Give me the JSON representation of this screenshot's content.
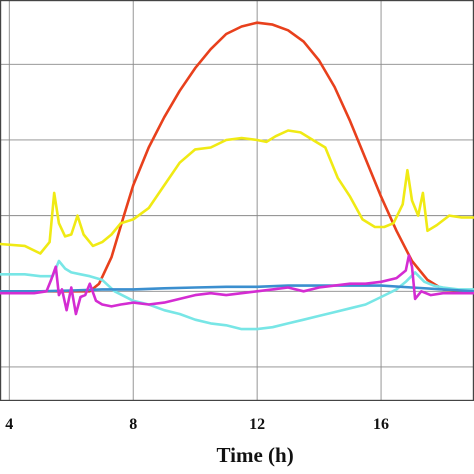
{
  "chart_data": {
    "type": "line",
    "title": "",
    "xlabel": "Time (h)",
    "ylabel": "",
    "x_ticks": [
      4,
      8,
      12,
      16
    ],
    "xlim": [
      3.7,
      19.0
    ],
    "ylim": [
      -2.9,
      7.7
    ],
    "grid": true,
    "legend": "none",
    "series": [
      {
        "color": "#e8401c",
        "points": [
          [
            3.7,
            0.0
          ],
          [
            5,
            0.0
          ],
          [
            6,
            0.0
          ],
          [
            6.6,
            0.0
          ],
          [
            6.9,
            0.2
          ],
          [
            7.3,
            0.9
          ],
          [
            7.7,
            2.0
          ],
          [
            8,
            2.8
          ],
          [
            8.5,
            3.8
          ],
          [
            9,
            4.6
          ],
          [
            9.5,
            5.3
          ],
          [
            10,
            5.9
          ],
          [
            10.5,
            6.4
          ],
          [
            11,
            6.8
          ],
          [
            11.5,
            7.0
          ],
          [
            12,
            7.1
          ],
          [
            12.5,
            7.05
          ],
          [
            13,
            6.9
          ],
          [
            13.5,
            6.6
          ],
          [
            14,
            6.1
          ],
          [
            14.5,
            5.4
          ],
          [
            15,
            4.5
          ],
          [
            15.5,
            3.5
          ],
          [
            16,
            2.5
          ],
          [
            16.5,
            1.6
          ],
          [
            17,
            0.8
          ],
          [
            17.5,
            0.3
          ],
          [
            18,
            0.05
          ],
          [
            18.5,
            0.0
          ],
          [
            19,
            0.0
          ]
        ]
      },
      {
        "color": "#f0ea14",
        "points": [
          [
            3.7,
            1.25
          ],
          [
            4.5,
            1.2
          ],
          [
            5,
            1.0
          ],
          [
            5.3,
            1.3
          ],
          [
            5.45,
            2.6
          ],
          [
            5.6,
            1.8
          ],
          [
            5.8,
            1.45
          ],
          [
            6.0,
            1.5
          ],
          [
            6.2,
            2.0
          ],
          [
            6.4,
            1.5
          ],
          [
            6.7,
            1.2
          ],
          [
            7.0,
            1.3
          ],
          [
            7.3,
            1.5
          ],
          [
            7.6,
            1.8
          ],
          [
            8,
            1.9
          ],
          [
            8.5,
            2.2
          ],
          [
            9,
            2.8
          ],
          [
            9.5,
            3.4
          ],
          [
            10,
            3.75
          ],
          [
            10.5,
            3.8
          ],
          [
            11,
            4.0
          ],
          [
            11.5,
            4.05
          ],
          [
            12,
            4.0
          ],
          [
            12.3,
            3.95
          ],
          [
            12.6,
            4.1
          ],
          [
            13,
            4.25
          ],
          [
            13.4,
            4.2
          ],
          [
            13.8,
            4.0
          ],
          [
            14.2,
            3.8
          ],
          [
            14.6,
            3.0
          ],
          [
            15,
            2.5
          ],
          [
            15.4,
            1.9
          ],
          [
            15.8,
            1.7
          ],
          [
            16.1,
            1.7
          ],
          [
            16.4,
            1.8
          ],
          [
            16.7,
            2.3
          ],
          [
            16.85,
            3.2
          ],
          [
            17,
            2.4
          ],
          [
            17.2,
            2.0
          ],
          [
            17.35,
            2.6
          ],
          [
            17.5,
            1.6
          ],
          [
            17.8,
            1.75
          ],
          [
            18.2,
            2.0
          ],
          [
            18.6,
            1.95
          ],
          [
            19,
            1.95
          ]
        ]
      },
      {
        "color": "#78e6e6",
        "points": [
          [
            3.7,
            0.45
          ],
          [
            4.5,
            0.45
          ],
          [
            5,
            0.4
          ],
          [
            5.4,
            0.4
          ],
          [
            5.6,
            0.8
          ],
          [
            5.8,
            0.6
          ],
          [
            6.0,
            0.5
          ],
          [
            6.3,
            0.45
          ],
          [
            6.6,
            0.4
          ],
          [
            7,
            0.3
          ],
          [
            7.4,
            0.0
          ],
          [
            8,
            -0.25
          ],
          [
            8.5,
            -0.35
          ],
          [
            9,
            -0.5
          ],
          [
            9.5,
            -0.6
          ],
          [
            10,
            -0.75
          ],
          [
            10.5,
            -0.85
          ],
          [
            11,
            -0.9
          ],
          [
            11.5,
            -1.0
          ],
          [
            12,
            -1.0
          ],
          [
            12.5,
            -0.95
          ],
          [
            13,
            -0.85
          ],
          [
            13.5,
            -0.75
          ],
          [
            14,
            -0.65
          ],
          [
            14.5,
            -0.55
          ],
          [
            15,
            -0.45
          ],
          [
            15.5,
            -0.35
          ],
          [
            16,
            -0.15
          ],
          [
            16.5,
            0.05
          ],
          [
            16.8,
            0.25
          ],
          [
            17.1,
            0.5
          ],
          [
            17.4,
            0.25
          ],
          [
            17.7,
            0.15
          ],
          [
            18,
            0.1
          ],
          [
            18.5,
            0.05
          ],
          [
            19,
            0.05
          ]
        ]
      },
      {
        "color": "#3b8fcf",
        "points": [
          [
            3.7,
            0.0
          ],
          [
            5,
            0.0
          ],
          [
            6,
            0.02
          ],
          [
            7,
            0.05
          ],
          [
            8,
            0.05
          ],
          [
            9,
            0.08
          ],
          [
            10,
            0.1
          ],
          [
            11,
            0.12
          ],
          [
            12,
            0.12
          ],
          [
            13,
            0.15
          ],
          [
            14,
            0.15
          ],
          [
            15,
            0.15
          ],
          [
            16,
            0.15
          ],
          [
            17,
            0.1
          ],
          [
            18,
            0.05
          ],
          [
            19,
            0.0
          ]
        ]
      },
      {
        "color": "#d42cd2",
        "points": [
          [
            3.7,
            -0.05
          ],
          [
            4.8,
            -0.05
          ],
          [
            5.2,
            0.0
          ],
          [
            5.35,
            0.3
          ],
          [
            5.5,
            0.65
          ],
          [
            5.6,
            -0.1
          ],
          [
            5.7,
            0.05
          ],
          [
            5.85,
            -0.5
          ],
          [
            6.0,
            0.1
          ],
          [
            6.15,
            -0.6
          ],
          [
            6.3,
            -0.15
          ],
          [
            6.45,
            -0.1
          ],
          [
            6.6,
            0.2
          ],
          [
            6.8,
            -0.25
          ],
          [
            7.0,
            -0.35
          ],
          [
            7.3,
            -0.4
          ],
          [
            7.6,
            -0.35
          ],
          [
            8,
            -0.3
          ],
          [
            8.5,
            -0.35
          ],
          [
            9,
            -0.3
          ],
          [
            9.5,
            -0.2
          ],
          [
            10,
            -0.1
          ],
          [
            10.5,
            -0.05
          ],
          [
            11,
            -0.1
          ],
          [
            11.5,
            -0.05
          ],
          [
            12,
            0.0
          ],
          [
            12.5,
            0.05
          ],
          [
            13,
            0.1
          ],
          [
            13.5,
            0.0
          ],
          [
            14,
            0.1
          ],
          [
            14.5,
            0.15
          ],
          [
            15,
            0.2
          ],
          [
            15.5,
            0.2
          ],
          [
            16,
            0.25
          ],
          [
            16.5,
            0.35
          ],
          [
            16.8,
            0.55
          ],
          [
            16.9,
            0.95
          ],
          [
            17.0,
            0.65
          ],
          [
            17.1,
            -0.2
          ],
          [
            17.3,
            0.0
          ],
          [
            17.6,
            -0.1
          ],
          [
            18,
            -0.05
          ],
          [
            19,
            -0.05
          ]
        ]
      }
    ]
  }
}
